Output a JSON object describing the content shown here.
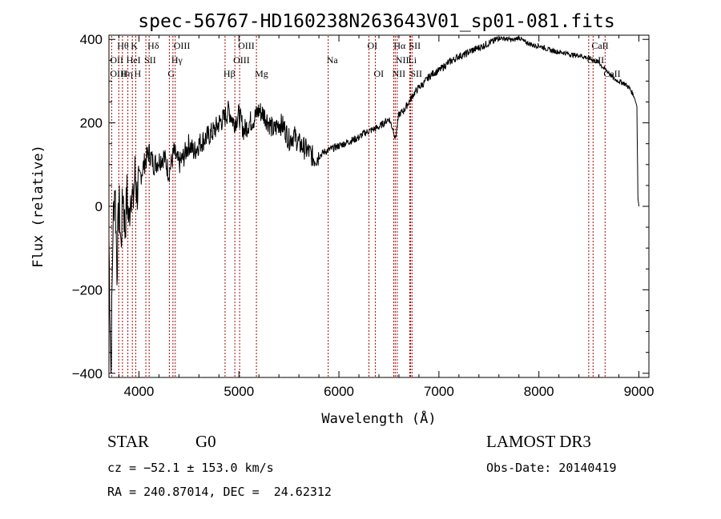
{
  "chart_data": {
    "type": "line",
    "title": "spec-56767-HD160238N263643V01_sp01-081.fits",
    "xlabel": "Wavelength (Å)",
    "ylabel": "Flux (relative)",
    "xlim": [
      3700,
      9100
    ],
    "ylim": [
      -410,
      410
    ],
    "xticks": [
      4000,
      5000,
      6000,
      7000,
      8000,
      9000
    ],
    "yticks": [
      -400,
      -200,
      0,
      200,
      400
    ],
    "grid": false,
    "series": [
      {
        "x": [
          3700,
          3720,
          3740,
          3760,
          3780,
          3800,
          3820,
          3840,
          3860,
          3880,
          3900,
          3920,
          3940,
          3960,
          3980,
          4000,
          4050,
          4100,
          4150,
          4200,
          4250,
          4300,
          4350,
          4400,
          4450,
          4500,
          4550,
          4600,
          4650,
          4700,
          4750,
          4800,
          4850,
          4900,
          4950,
          5000,
          5050,
          5100,
          5150,
          5200,
          5250,
          5300,
          5350,
          5400,
          5450,
          5500,
          5550,
          5600,
          5650,
          5700,
          5750,
          5800,
          5850,
          5900,
          5950,
          6000,
          6050,
          6100,
          6150,
          6200,
          6250,
          6300,
          6350,
          6400,
          6450,
          6500,
          6550,
          6563,
          6600,
          6650,
          6700,
          6750,
          6800,
          6850,
          6900,
          6950,
          7000,
          7050,
          7100,
          7150,
          7200,
          7250,
          7300,
          7350,
          7400,
          7450,
          7500,
          7550,
          7600,
          7650,
          7700,
          7750,
          7800,
          7850,
          7900,
          7950,
          8000,
          8050,
          8100,
          8150,
          8200,
          8250,
          8300,
          8350,
          8400,
          8450,
          8500,
          8550,
          8600,
          8650,
          8700,
          8750,
          8800,
          8850,
          8900,
          8950,
          8980,
          8990,
          9000
        ],
        "y": [
          -80,
          -400,
          -50,
          60,
          -150,
          20,
          -100,
          40,
          -60,
          30,
          -40,
          50,
          0,
          80,
          30,
          60,
          100,
          130,
          100,
          110,
          120,
          80,
          130,
          100,
          120,
          150,
          130,
          150,
          160,
          170,
          180,
          200,
          210,
          230,
          200,
          220,
          180,
          200,
          210,
          230,
          220,
          200,
          180,
          200,
          190,
          160,
          170,
          150,
          140,
          130,
          115,
          120,
          130,
          135,
          140,
          145,
          150,
          155,
          160,
          165,
          175,
          180,
          185,
          190,
          200,
          210,
          180,
          160,
          220,
          230,
          250,
          270,
          285,
          295,
          310,
          320,
          325,
          335,
          345,
          352,
          360,
          362,
          370,
          375,
          380,
          385,
          392,
          395,
          405,
          402,
          400,
          398,
          405,
          395,
          390,
          385,
          385,
          380,
          375,
          372,
          370,
          368,
          365,
          362,
          362,
          358,
          355,
          350,
          345,
          330,
          320,
          305,
          300,
          295,
          285,
          265,
          240,
          20,
          0
        ]
      }
    ],
    "line_labels": [
      {
        "text": "Hθ",
        "x": 3798,
        "row": 1
      },
      {
        "text": "K",
        "x": 3934,
        "row": 1
      },
      {
        "text": "Hδ",
        "x": 4102,
        "row": 1
      },
      {
        "text": "OIII",
        "x": 4363,
        "row": 1
      },
      {
        "text": "OIII",
        "x": 5007,
        "row": 1
      },
      {
        "text": "OI",
        "x": 6300,
        "row": 1
      },
      {
        "text": "Hα",
        "x": 6563,
        "row": 1
      },
      {
        "text": "SII",
        "x": 6716,
        "row": 1
      },
      {
        "text": "CaII",
        "x": 8542,
        "row": 1
      },
      {
        "text": "OII",
        "x": 3727,
        "row": 2
      },
      {
        "text": "HeI",
        "x": 3889,
        "row": 2
      },
      {
        "text": "SII",
        "x": 4069,
        "row": 2
      },
      {
        "text": "Hγ",
        "x": 4340,
        "row": 2
      },
      {
        "text": "OIII",
        "x": 4959,
        "row": 2
      },
      {
        "text": "Na",
        "x": 5893,
        "row": 2
      },
      {
        "text": "NII",
        "x": 6583,
        "row": 2
      },
      {
        "text": "Li",
        "x": 6708,
        "row": 2
      },
      {
        "text": "CaII",
        "x": 8498,
        "row": 2
      },
      {
        "text": "OIII",
        "x": 3727,
        "row": 3
      },
      {
        "text": "Hη",
        "x": 3835,
        "row": 3
      },
      {
        "text": "H",
        "x": 3968,
        "row": 3
      },
      {
        "text": "G",
        "x": 4304,
        "row": 3
      },
      {
        "text": "Hβ",
        "x": 4861,
        "row": 3
      },
      {
        "text": "Mg",
        "x": 5175,
        "row": 3
      },
      {
        "text": "OI",
        "x": 6364,
        "row": 3
      },
      {
        "text": "NII",
        "x": 6548,
        "row": 3
      },
      {
        "text": "SII",
        "x": 6731,
        "row": 3
      },
      {
        "text": "CaII",
        "x": 8662,
        "row": 3
      }
    ],
    "line_positions": [
      3727,
      3798,
      3835,
      3889,
      3934,
      3968,
      4069,
      4102,
      4304,
      4340,
      4363,
      4861,
      4959,
      5007,
      5175,
      5893,
      6300,
      6364,
      6548,
      6563,
      6583,
      6708,
      6716,
      6731,
      8498,
      8542,
      8662
    ],
    "line_color": "#b00000",
    "spectrum_color": "#000000"
  },
  "info": {
    "class": "STAR",
    "subclass": "G0",
    "survey": "LAMOST DR3",
    "cz": "cz = −52.1 ± 153.0 km/s",
    "obs_date": "Obs-Date: 20140419",
    "coords": "RA = 240.87014, DEC =  24.62312"
  }
}
